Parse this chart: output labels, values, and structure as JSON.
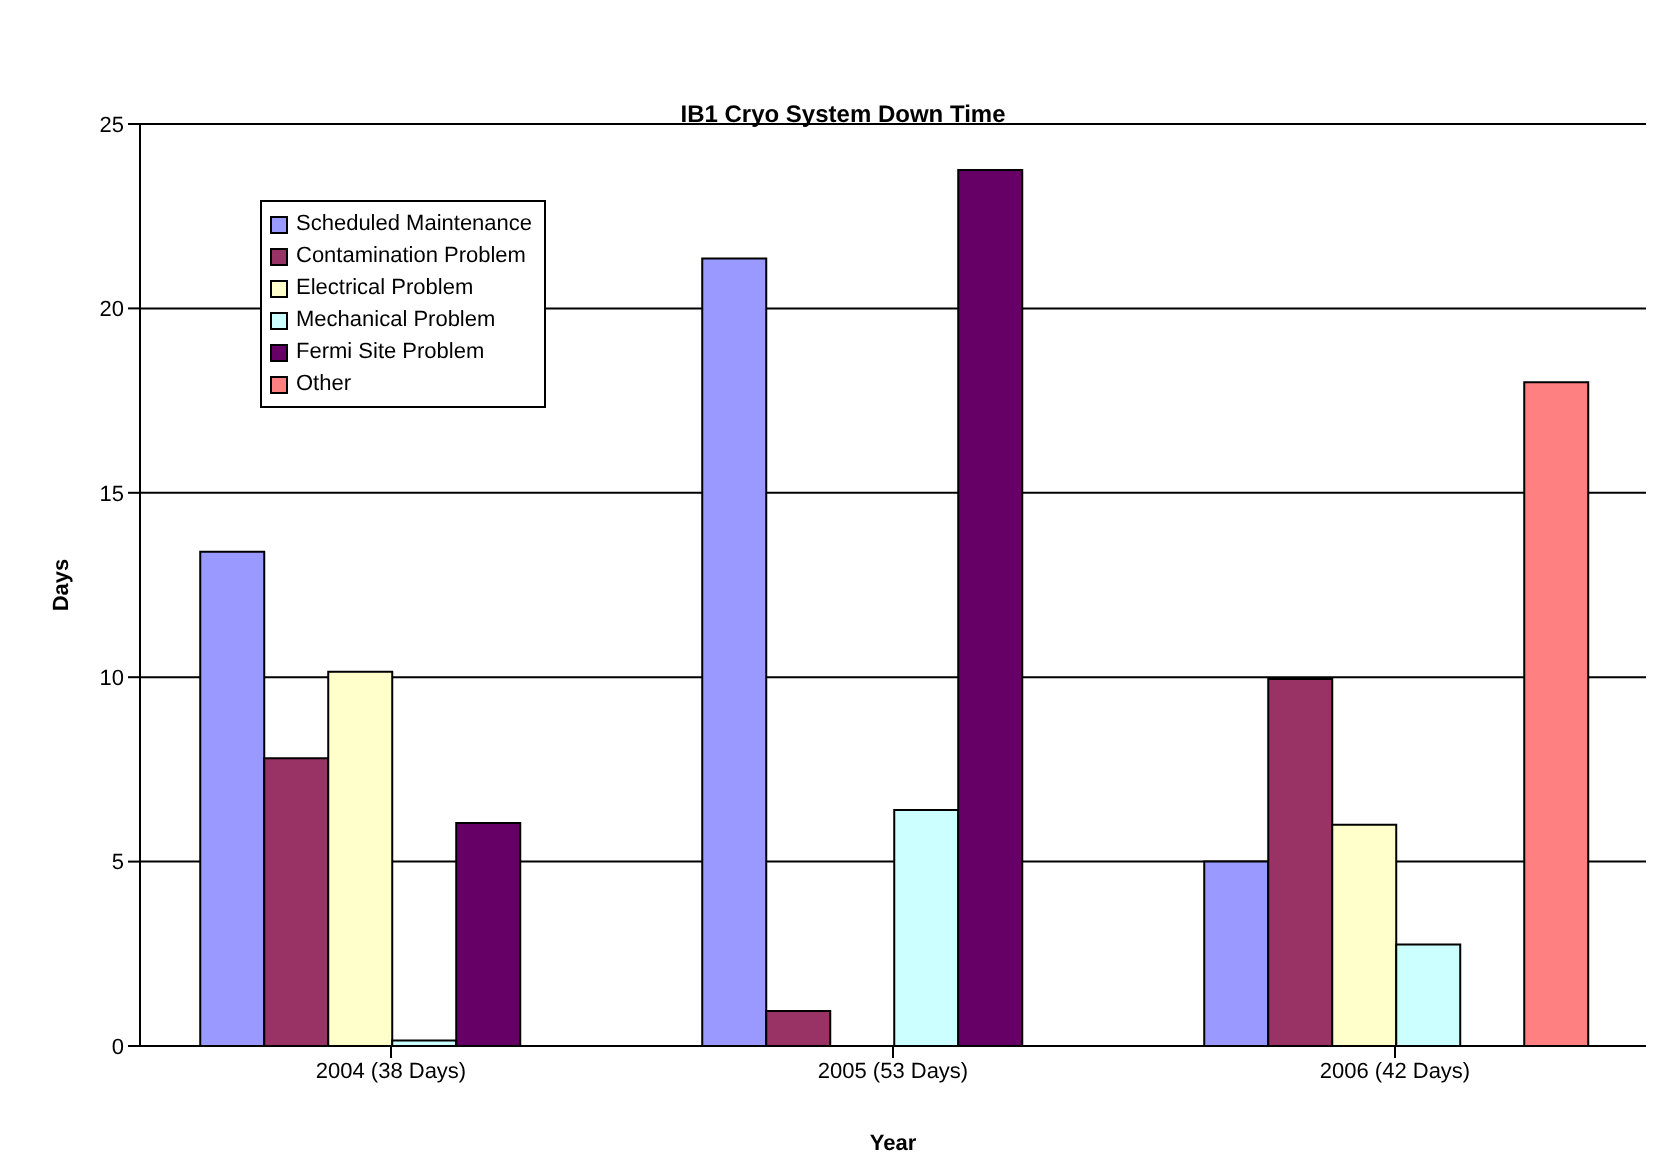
{
  "chart_data": {
    "type": "bar",
    "title": "IB1 Cryo System Down Time",
    "xlabel": "Year",
    "ylabel": "Days",
    "categories": [
      "2004  (38 Days)",
      "2005  (53 Days)",
      "2006  (42 Days)"
    ],
    "series": [
      {
        "name": "Scheduled Maintenance",
        "color": "#9999ff",
        "values": [
          13.4,
          21.35,
          5
        ]
      },
      {
        "name": "Contamination Problem",
        "color": "#993366",
        "values": [
          7.8,
          0.95,
          9.95
        ]
      },
      {
        "name": "Electrical Problem",
        "color": "#ffffcc",
        "values": [
          10.15,
          null,
          6
        ]
      },
      {
        "name": "Mechanical Problem",
        "color": "#ccffff",
        "values": [
          0.15,
          6.4,
          2.75
        ]
      },
      {
        "name": "Fermi Site Problem",
        "color": "#660066",
        "values": [
          6.05,
          23.75,
          null
        ]
      },
      {
        "name": "Other",
        "color": "#ff8080",
        "values": [
          null,
          null,
          18
        ]
      }
    ],
    "ylim": [
      0,
      25
    ],
    "yticks": [
      0,
      5,
      10,
      15,
      20,
      25
    ],
    "grid": "y",
    "legend": "top left"
  }
}
